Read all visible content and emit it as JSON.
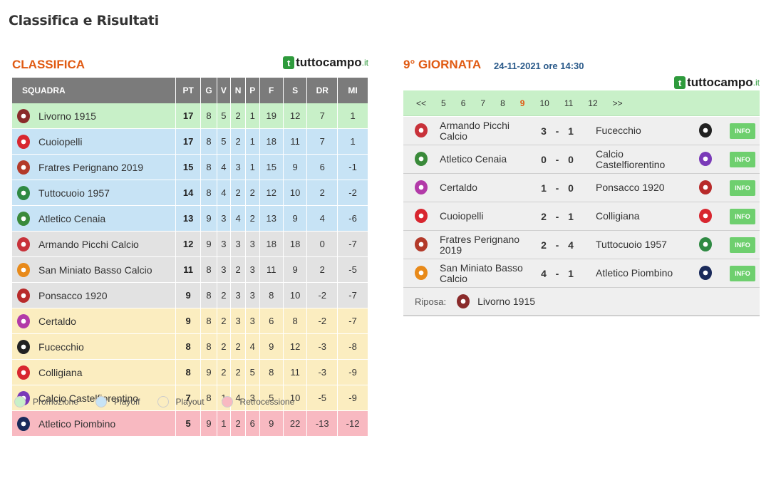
{
  "page_title": "Classifica e Risultati",
  "brand": {
    "main": "tuttocampo",
    "tld": ".it",
    "icon": "t"
  },
  "standings": {
    "title": "CLASSIFICA",
    "headers": [
      "SQUADRA",
      "PT",
      "G",
      "V",
      "N",
      "P",
      "F",
      "S",
      "DR",
      "MI"
    ],
    "rows": [
      {
        "team": "Livorno 1915",
        "zone": "promo",
        "crest": "#8a2b2b",
        "vals": [
          "17",
          "8",
          "5",
          "2",
          "1",
          "19",
          "12",
          "7",
          "1"
        ]
      },
      {
        "team": "Cuoiopelli",
        "zone": "playoff",
        "crest": "#d8262f",
        "vals": [
          "17",
          "8",
          "5",
          "2",
          "1",
          "18",
          "11",
          "7",
          "1"
        ]
      },
      {
        "team": "Fratres Perignano 2019",
        "zone": "playoff",
        "crest": "#b33a2a",
        "vals": [
          "15",
          "8",
          "4",
          "3",
          "1",
          "15",
          "9",
          "6",
          "-1"
        ]
      },
      {
        "team": "Tuttocuoio 1957",
        "zone": "playoff",
        "crest": "#2f8a43",
        "vals": [
          "14",
          "8",
          "4",
          "2",
          "2",
          "12",
          "10",
          "2",
          "-2"
        ]
      },
      {
        "team": "Atletico Cenaia",
        "zone": "playoff",
        "crest": "#3a8a3a",
        "vals": [
          "13",
          "9",
          "3",
          "4",
          "2",
          "13",
          "9",
          "4",
          "-6"
        ]
      },
      {
        "team": "Armando Picchi Calcio",
        "zone": "neutral",
        "crest": "#c8323a",
        "vals": [
          "12",
          "9",
          "3",
          "3",
          "3",
          "18",
          "18",
          "0",
          "-7"
        ]
      },
      {
        "team": "San Miniato Basso Calcio",
        "zone": "neutral",
        "crest": "#e88a1a",
        "vals": [
          "11",
          "8",
          "3",
          "2",
          "3",
          "11",
          "9",
          "2",
          "-5"
        ]
      },
      {
        "team": "Ponsacco 1920",
        "zone": "neutral",
        "crest": "#b82a2a",
        "vals": [
          "9",
          "8",
          "2",
          "3",
          "3",
          "8",
          "10",
          "-2",
          "-7"
        ]
      },
      {
        "team": "Certaldo",
        "zone": "playout",
        "crest": "#b23aa8",
        "vals": [
          "9",
          "8",
          "2",
          "3",
          "3",
          "6",
          "8",
          "-2",
          "-7"
        ]
      },
      {
        "team": "Fucecchio",
        "zone": "playout",
        "crest": "#222222",
        "vals": [
          "8",
          "8",
          "2",
          "2",
          "4",
          "9",
          "12",
          "-3",
          "-8"
        ]
      },
      {
        "team": "Colligiana",
        "zone": "playout",
        "crest": "#d8262f",
        "vals": [
          "8",
          "9",
          "2",
          "2",
          "5",
          "8",
          "11",
          "-3",
          "-9"
        ]
      },
      {
        "team": "Calcio Castelfiorentino",
        "zone": "playout",
        "crest": "#7a3ab8",
        "vals": [
          "7",
          "8",
          "1",
          "4",
          "3",
          "5",
          "10",
          "-5",
          "-9"
        ]
      },
      {
        "team": "Atletico Piombino",
        "zone": "retro",
        "crest": "#1a2a5a",
        "vals": [
          "5",
          "9",
          "1",
          "2",
          "6",
          "9",
          "22",
          "-13",
          "-12"
        ]
      }
    ],
    "legend": [
      {
        "label": "Promozione",
        "color": "#c8f0c8"
      },
      {
        "label": "Playoff",
        "color": "#c7e3f5"
      },
      {
        "label": "Playout",
        "color": "#fbedc0"
      },
      {
        "label": "Retrocessione",
        "color": "#f8b9c1"
      }
    ]
  },
  "round": {
    "title": "9° GIORNATA",
    "date": "24-11-2021 ore 14:30",
    "nav": [
      "<<",
      "5",
      "6",
      "7",
      "8",
      "9",
      "10",
      "11",
      "12",
      ">>"
    ],
    "current": "9",
    "info_label": "INFO",
    "matches": [
      {
        "home": "Armando Picchi Calcio",
        "hs": "3",
        "as": "1",
        "away": "Fucecchio",
        "hc": "#c8323a",
        "ac": "#222222"
      },
      {
        "home": "Atletico Cenaia",
        "hs": "0",
        "as": "0",
        "away": "Calcio Castelfiorentino",
        "hc": "#3a8a3a",
        "ac": "#7a3ab8"
      },
      {
        "home": "Certaldo",
        "hs": "1",
        "as": "0",
        "away": "Ponsacco 1920",
        "hc": "#b23aa8",
        "ac": "#b82a2a"
      },
      {
        "home": "Cuoiopelli",
        "hs": "2",
        "as": "1",
        "away": "Colligiana",
        "hc": "#d8262f",
        "ac": "#d8262f"
      },
      {
        "home": "Fratres Perignano 2019",
        "hs": "2",
        "as": "4",
        "away": "Tuttocuoio 1957",
        "hc": "#b33a2a",
        "ac": "#2f8a43"
      },
      {
        "home": "San Miniato Basso Calcio",
        "hs": "4",
        "as": "1",
        "away": "Atletico Piombino",
        "hc": "#e88a1a",
        "ac": "#1a2a5a"
      }
    ],
    "rest": {
      "label": "Riposa:",
      "team": "Livorno 1915",
      "crest": "#8a2b2b"
    }
  }
}
